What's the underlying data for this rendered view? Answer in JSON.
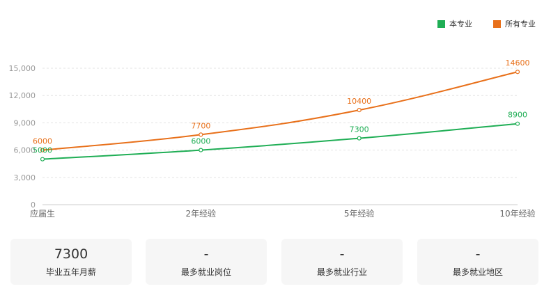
{
  "chart_data": {
    "type": "line",
    "categories": [
      "应届生",
      "2年经验",
      "5年经验",
      "10年经验"
    ],
    "series": [
      {
        "name": "本专业",
        "values": [
          5000,
          6000,
          7300,
          8900
        ],
        "labels": [
          "5000",
          "6000",
          "7300",
          "8900"
        ],
        "color": "#1fae55"
      },
      {
        "name": "所有专业",
        "values": [
          6000,
          7700,
          10400,
          14600
        ],
        "labels": [
          "6000",
          "7700",
          "10400",
          "14600"
        ],
        "color": "#e8701a"
      }
    ],
    "ylim": [
      0,
      15000
    ],
    "yticks": [
      0,
      3000,
      6000,
      9000,
      12000,
      15000
    ],
    "ytick_labels": [
      "0",
      "3,000",
      "6,000",
      "9,000",
      "12,000",
      "15,000"
    ],
    "grid": true,
    "legend_position": "top-right"
  },
  "stats": [
    {
      "value": "7300",
      "label": "毕业五年月薪"
    },
    {
      "value": "-",
      "label": "最多就业岗位"
    },
    {
      "value": "-",
      "label": "最多就业行业"
    },
    {
      "value": "-",
      "label": "最多就业地区"
    }
  ]
}
